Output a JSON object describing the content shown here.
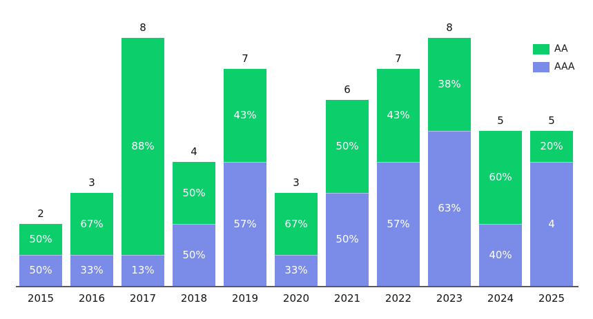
{
  "chart_data": {
    "type": "bar",
    "stacked": true,
    "title": "",
    "xlabel": "",
    "ylabel": "",
    "ylim": [
      0,
      8
    ],
    "grid": false,
    "legend_position": "top-right",
    "categories": [
      "2015",
      "2016",
      "2017",
      "2018",
      "2019",
      "2020",
      "2021",
      "2022",
      "2023",
      "2024",
      "2025"
    ],
    "series": [
      {
        "name": "AAA",
        "color": "#7b8be8",
        "values": [
          1,
          1,
          1,
          2,
          4,
          1,
          3,
          4,
          5,
          2,
          4
        ],
        "segment_labels": [
          "50%",
          "33%",
          "13%",
          "50%",
          "57%",
          "33%",
          "50%",
          "57%",
          "63%",
          "40%",
          "4"
        ]
      },
      {
        "name": "AA",
        "color": "#0cce6b",
        "values": [
          1,
          2,
          7,
          2,
          3,
          2,
          3,
          3,
          3,
          3,
          1
        ],
        "segment_labels": [
          "50%",
          "67%",
          "88%",
          "50%",
          "43%",
          "67%",
          "50%",
          "43%",
          "38%",
          "60%",
          "20%"
        ]
      }
    ],
    "totals": [
      2,
      3,
      8,
      4,
      7,
      3,
      6,
      7,
      8,
      5,
      5
    ],
    "total_labels": [
      "2",
      "3",
      "8",
      "4",
      "7",
      "3",
      "6",
      "7",
      "8",
      "5",
      "5"
    ],
    "legend": [
      {
        "label": "AA",
        "color": "#0cce6b"
      },
      {
        "label": "AAA",
        "color": "#7b8be8"
      }
    ]
  },
  "colors": {
    "aa": "#0cce6b",
    "aaa": "#7b8be8",
    "axis": "#595959",
    "segment_text": "#ffffff",
    "label_text": "#111111",
    "background": "#ffffff"
  }
}
